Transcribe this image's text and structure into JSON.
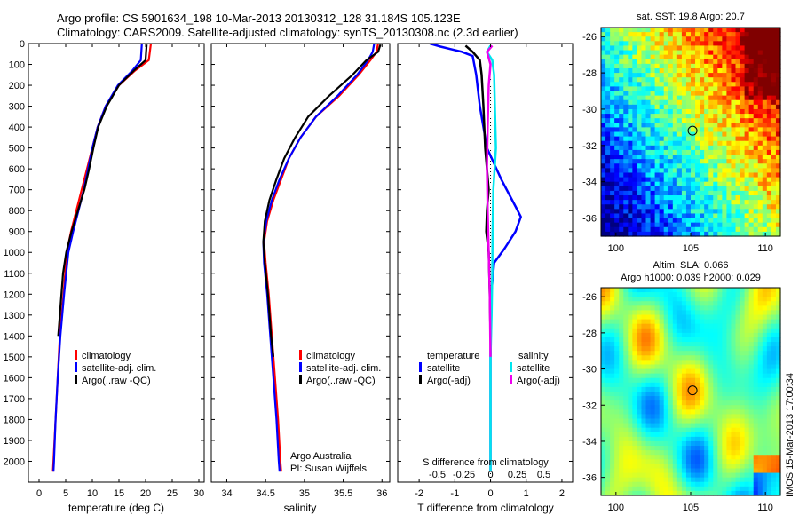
{
  "header": {
    "line1": "Argo profile: CS 5901634_198 10-Mar-2013 20130312_128 31.184S 105.123E",
    "line2": "Climatology: CARS2009. Satellite-adjusted climatology: synTS_20130308.nc (2.3d earlier)"
  },
  "colors": {
    "climatology": "#ff0000",
    "satellite": "#0000ff",
    "argo": "#000000",
    "satellite_salinity": "#00e5ee",
    "argo_salinity_adj": "#ee00ee"
  },
  "chart_data": [
    {
      "id": "temperature",
      "type": "line",
      "xlabel": "temperature (deg C)",
      "ylabel": "",
      "xlim": [
        -2,
        31
      ],
      "ylim": [
        2100,
        0
      ],
      "xticks": [
        "0",
        "5",
        "10",
        "15",
        "20",
        "25",
        "30"
      ],
      "xtick_values": [
        0,
        5,
        10,
        15,
        20,
        25,
        30
      ],
      "yticks": [
        0,
        100,
        200,
        300,
        400,
        500,
        600,
        700,
        800,
        900,
        1000,
        1100,
        1200,
        1300,
        1400,
        1500,
        1600,
        1700,
        1800,
        1900,
        2000
      ],
      "legend": [
        "climatology",
        "satellite-adj. clim.",
        "Argo(..raw -QC)"
      ],
      "series": [
        {
          "name": "climatology",
          "color_key": "climatology",
          "points": [
            [
              21,
              0
            ],
            [
              20.8,
              40
            ],
            [
              20.6,
              80
            ],
            [
              18,
              130
            ],
            [
              15,
              200
            ],
            [
              12.5,
              300
            ],
            [
              11,
              400
            ],
            [
              10,
              500
            ],
            [
              9,
              600
            ],
            [
              8,
              700
            ],
            [
              7,
              800
            ],
            [
              6,
              900
            ],
            [
              5.2,
              1000
            ],
            [
              4.6,
              1200
            ],
            [
              3.9,
              1400
            ],
            [
              3.5,
              1600
            ],
            [
              3.1,
              1800
            ],
            [
              2.7,
              2000
            ],
            [
              2.6,
              2050
            ]
          ]
        },
        {
          "name": "satellite-adj. clim.",
          "color_key": "satellite",
          "points": [
            [
              19.3,
              0
            ],
            [
              19.2,
              40
            ],
            [
              19.1,
              80
            ],
            [
              17.5,
              130
            ],
            [
              14.8,
              200
            ],
            [
              12.5,
              300
            ],
            [
              11,
              400
            ],
            [
              10,
              500
            ],
            [
              9.2,
              600
            ],
            [
              8.4,
              700
            ],
            [
              7.4,
              800
            ],
            [
              6.4,
              900
            ],
            [
              5.5,
              1000
            ],
            [
              4.7,
              1200
            ],
            [
              4,
              1400
            ],
            [
              3.5,
              1600
            ],
            [
              3.1,
              1800
            ],
            [
              2.8,
              2000
            ],
            [
              2.7,
              2050
            ]
          ]
        },
        {
          "name": "Argo(..raw -QC)",
          "color_key": "argo",
          "points": [
            [
              20.2,
              5
            ],
            [
              20.1,
              40
            ],
            [
              20,
              80
            ],
            [
              17.8,
              130
            ],
            [
              15,
              200
            ],
            [
              12.7,
              300
            ],
            [
              11.1,
              400
            ],
            [
              10.2,
              500
            ],
            [
              9.4,
              600
            ],
            [
              8.5,
              700
            ],
            [
              7.3,
              800
            ],
            [
              6.1,
              900
            ],
            [
              5.1,
              1000
            ],
            [
              4.5,
              1100
            ],
            [
              3.9,
              1300
            ],
            [
              3.6,
              1400
            ]
          ]
        }
      ]
    },
    {
      "id": "salinity",
      "type": "line",
      "xlabel": "salinity",
      "xlim": [
        33.8,
        36.1
      ],
      "ylim": [
        2100,
        0
      ],
      "xticks": [
        "34",
        "34.5",
        "35",
        "35.5",
        "36"
      ],
      "xtick_values": [
        34,
        34.5,
        35,
        35.5,
        36
      ],
      "legend": [
        "climatology",
        "satellite-adj. clim.",
        "Argo(..raw -QC)"
      ],
      "annotation": [
        "Argo Australia",
        "PI: Susan Wijffels"
      ],
      "series": [
        {
          "name": "climatology",
          "color_key": "climatology",
          "points": [
            [
              35.95,
              0
            ],
            [
              35.93,
              40
            ],
            [
              35.85,
              80
            ],
            [
              35.7,
              150
            ],
            [
              35.45,
              250
            ],
            [
              35.15,
              350
            ],
            [
              34.95,
              450
            ],
            [
              34.8,
              550
            ],
            [
              34.7,
              650
            ],
            [
              34.6,
              750
            ],
            [
              34.52,
              850
            ],
            [
              34.48,
              950
            ],
            [
              34.5,
              1050
            ],
            [
              34.54,
              1200
            ],
            [
              34.58,
              1400
            ],
            [
              34.62,
              1600
            ],
            [
              34.66,
              1800
            ],
            [
              34.69,
              2000
            ],
            [
              34.7,
              2050
            ]
          ]
        },
        {
          "name": "satellite-adj. clim.",
          "color_key": "satellite",
          "points": [
            [
              35.9,
              0
            ],
            [
              35.88,
              40
            ],
            [
              35.82,
              80
            ],
            [
              35.68,
              150
            ],
            [
              35.43,
              250
            ],
            [
              35.15,
              350
            ],
            [
              34.95,
              450
            ],
            [
              34.8,
              550
            ],
            [
              34.68,
              650
            ],
            [
              34.58,
              750
            ],
            [
              34.51,
              850
            ],
            [
              34.47,
              950
            ],
            [
              34.48,
              1050
            ],
            [
              34.52,
              1200
            ],
            [
              34.56,
              1400
            ],
            [
              34.6,
              1600
            ],
            [
              34.64,
              1800
            ],
            [
              34.67,
              2000
            ],
            [
              34.68,
              2050
            ]
          ]
        },
        {
          "name": "Argo(..raw -QC)",
          "color_key": "argo",
          "points": [
            [
              35.98,
              5
            ],
            [
              35.95,
              40
            ],
            [
              35.8,
              80
            ],
            [
              35.62,
              150
            ],
            [
              35.32,
              250
            ],
            [
              35.05,
              350
            ],
            [
              34.88,
              450
            ],
            [
              34.74,
              550
            ],
            [
              34.64,
              650
            ],
            [
              34.55,
              750
            ],
            [
              34.49,
              850
            ],
            [
              34.47,
              950
            ],
            [
              34.49,
              1050
            ],
            [
              34.53,
              1200
            ],
            [
              34.57,
              1400
            ],
            [
              34.6,
              1500
            ]
          ]
        }
      ]
    },
    {
      "id": "difference",
      "type": "line",
      "xlabel": "T difference from climatology",
      "xlabel2": "S difference from climatology",
      "xlim": [
        -2.6,
        2.3
      ],
      "ylim": [
        2100,
        0
      ],
      "xticks": [
        "-2",
        "-1",
        "0",
        "1",
        "2"
      ],
      "xtick_values": [
        -2,
        -1,
        0,
        1,
        2
      ],
      "sticks": [
        "-0.5",
        "-0.25",
        "0",
        "0.25",
        "0.5"
      ],
      "stick_values": [
        -0.5,
        -0.25,
        0,
        0.25,
        0.5
      ],
      "legend_temperature_title": "temperature",
      "legend_salinity_title": "salinity",
      "legend_temperature": [
        "satellite",
        "Argo(-adj)"
      ],
      "legend_salinity": [
        "satellite",
        "Argo(-adj)"
      ],
      "series": [
        {
          "name": "T satellite",
          "color_key": "satellite",
          "points": [
            [
              -1.7,
              0
            ],
            [
              -1.4,
              15
            ],
            [
              -0.8,
              40
            ],
            [
              -0.5,
              60
            ],
            [
              -0.4,
              150
            ],
            [
              -0.3,
              300
            ],
            [
              -0.1,
              500
            ],
            [
              0.3,
              650
            ],
            [
              0.7,
              780
            ],
            [
              0.85,
              830
            ],
            [
              0.7,
              900
            ],
            [
              0.4,
              980
            ],
            [
              0.1,
              1050
            ],
            [
              0.02,
              1200
            ],
            [
              0,
              1500
            ],
            [
              0,
              2050
            ]
          ]
        },
        {
          "name": "T Argo(-adj)",
          "color_key": "argo",
          "points": [
            [
              -0.7,
              10
            ],
            [
              -0.5,
              40
            ],
            [
              -0.3,
              80
            ],
            [
              -0.25,
              150
            ],
            [
              -0.2,
              300
            ],
            [
              -0.15,
              500
            ],
            [
              -0.05,
              700
            ],
            [
              -0.1,
              800
            ],
            [
              -0.12,
              900
            ],
            [
              -0.05,
              1000
            ],
            [
              -0.02,
              1200
            ],
            [
              0,
              1400
            ]
          ]
        },
        {
          "name": "S satellite",
          "color_key": "satellite_salinity",
          "points": [
            [
              0,
              10
            ],
            [
              -0.1,
              40
            ],
            [
              0.05,
              80
            ],
            [
              0.1,
              150
            ],
            [
              0.12,
              300
            ],
            [
              0.15,
              500
            ],
            [
              0.08,
              700
            ],
            [
              0.06,
              900
            ],
            [
              0.05,
              1100
            ],
            [
              0.03,
              1300
            ],
            [
              0,
              1500
            ],
            [
              0,
              2050
            ]
          ]
        },
        {
          "name": "S Argo(-adj)",
          "color_key": "argo_salinity_adj",
          "points": [
            [
              0.05,
              10
            ],
            [
              -0.1,
              40
            ],
            [
              0,
              100
            ],
            [
              -0.05,
              200
            ],
            [
              -0.08,
              400
            ],
            [
              -0.1,
              600
            ],
            [
              -0.08,
              800
            ],
            [
              -0.05,
              1000
            ],
            [
              -0.02,
              1200
            ],
            [
              0,
              1500
            ]
          ]
        }
      ]
    },
    {
      "id": "sst_map",
      "type": "heatmap",
      "title": "sat. SST: 19.8  Argo: 20.7",
      "xlim": [
        99,
        111
      ],
      "ylim": [
        -37,
        -25.5
      ],
      "xticks": [
        "100",
        "105",
        "110"
      ],
      "xtick_values": [
        100,
        105,
        110
      ],
      "yticks": [
        "-26",
        "-28",
        "-30",
        "-32",
        "-34",
        "-36"
      ],
      "ytick_values": [
        -26,
        -28,
        -30,
        -32,
        -34,
        -36
      ],
      "marker": {
        "lon": 105.123,
        "lat": -31.184
      }
    },
    {
      "id": "sla_map",
      "type": "heatmap",
      "title": "Altim. SLA: 0.066",
      "subtitle": "Argo h1000: 0.039 h2000: 0.029",
      "xlim": [
        99,
        111
      ],
      "ylim": [
        -37,
        -25.5
      ],
      "xticks": [
        "100",
        "105",
        "110"
      ],
      "xtick_values": [
        100,
        105,
        110
      ],
      "yticks": [
        "-26",
        "-28",
        "-30",
        "-32",
        "-34",
        "-36"
      ],
      "ytick_values": [
        -26,
        -28,
        -30,
        -32,
        -34,
        -36
      ],
      "marker": {
        "lon": 105.123,
        "lat": -31.184
      }
    }
  ],
  "credit": "IMOS 15-Mar-2013 17:00:34"
}
